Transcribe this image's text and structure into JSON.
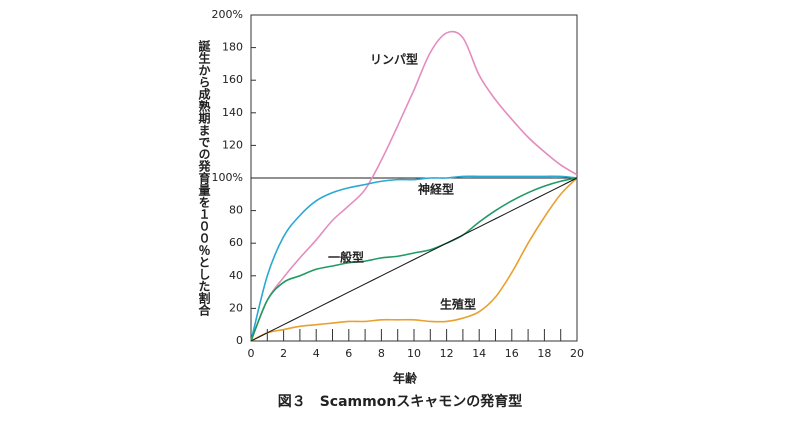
{
  "chart_data": {
    "type": "line",
    "xlabel": "年齢",
    "ylabel": "誕生から成熟期までの発育量を１００％とした割合",
    "caption": "図３　Scammonスキャモンの発育型",
    "x": [
      0,
      1,
      2,
      3,
      4,
      5,
      6,
      7,
      8,
      9,
      10,
      11,
      12,
      13,
      14,
      15,
      16,
      17,
      18,
      19,
      20
    ],
    "xlim": [
      0,
      20
    ],
    "xticks": [
      0,
      2,
      4,
      6,
      8,
      10,
      12,
      14,
      16,
      18,
      20
    ],
    "xminorticks": [
      1,
      3,
      5,
      7,
      9,
      11,
      13,
      15,
      17,
      19
    ],
    "ylim": [
      0,
      200
    ],
    "yticks": [
      0,
      20,
      40,
      60,
      80,
      {
        "value": 100,
        "label": "100%"
      },
      120,
      140,
      160,
      180,
      {
        "value": 200,
        "label": "200%"
      }
    ],
    "hline": 100,
    "series": [
      {
        "name": "リンパ型",
        "color": "#e48cc0",
        "values": [
          0,
          25,
          39,
          51,
          62,
          74,
          83,
          93,
          111,
          132,
          154,
          177,
          189,
          186,
          163,
          148,
          136,
          125,
          116,
          108,
          102
        ]
      },
      {
        "name": "神経型",
        "color": "#2aa8d4",
        "values": [
          0,
          40,
          64,
          77,
          86,
          91,
          94,
          96,
          98,
          99,
          99,
          100,
          100,
          101,
          101,
          101,
          101,
          101,
          101,
          101,
          100
        ]
      },
      {
        "name": "一般型",
        "color": "#1f9a62",
        "values": [
          0,
          25,
          36,
          40,
          44,
          46,
          48,
          49,
          51,
          52,
          54,
          56,
          60,
          65,
          73,
          80,
          86,
          91,
          95,
          98,
          100
        ]
      },
      {
        "name": "生殖型",
        "color": "#e8a030",
        "values": [
          0,
          5,
          7,
          9,
          10,
          11,
          12,
          12,
          13,
          13,
          13,
          12,
          12,
          14,
          18,
          27,
          42,
          60,
          76,
          90,
          100
        ]
      },
      {
        "color": "#111111",
        "values": [
          0,
          5,
          10,
          15,
          20,
          25,
          30,
          35,
          40,
          45,
          50,
          55,
          60,
          65,
          70,
          75,
          80,
          85,
          90,
          95,
          100
        ]
      }
    ]
  }
}
